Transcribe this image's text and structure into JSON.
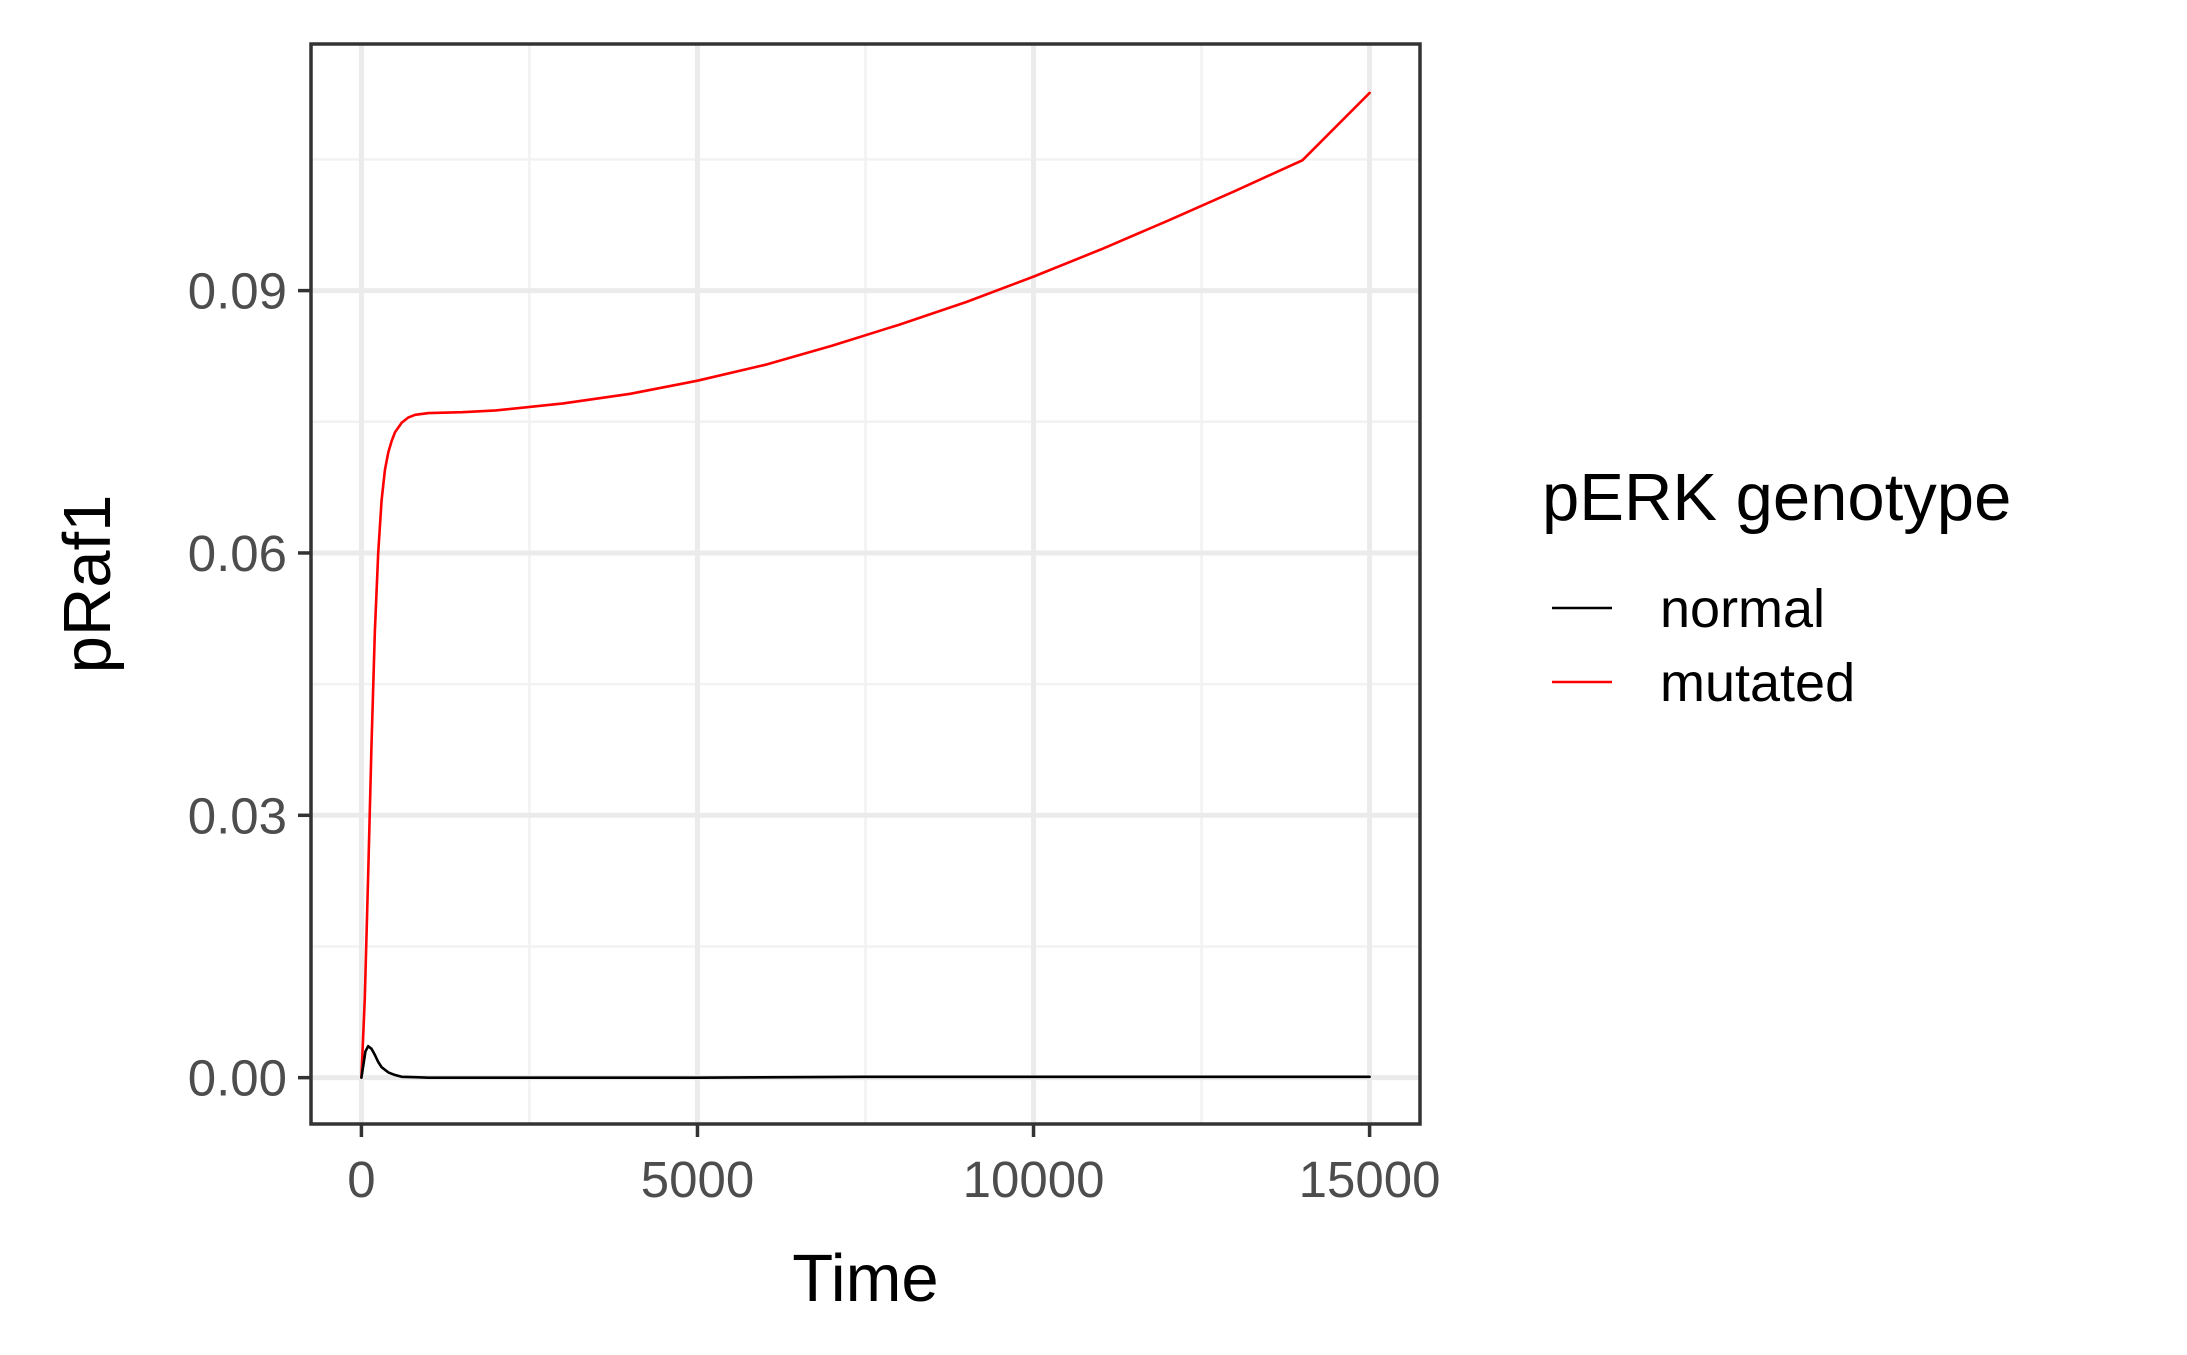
{
  "chart_data": {
    "type": "line",
    "title": "",
    "xlabel": "Time",
    "ylabel": "pRaf1",
    "xlim": [
      -750,
      15750
    ],
    "ylim": [
      -0.0053,
      0.1182
    ],
    "x_ticks": [
      0,
      5000,
      10000,
      15000
    ],
    "x_tick_labels": [
      "0",
      "5000",
      "10000",
      "15000"
    ],
    "y_ticks": [
      0.0,
      0.03,
      0.06,
      0.09
    ],
    "y_tick_labels": [
      "0.00",
      "0.03",
      "0.06",
      "0.09"
    ],
    "x_minor_ticks": [
      2500,
      7500,
      12500
    ],
    "y_minor_ticks": [
      0.015,
      0.045,
      0.075,
      0.105
    ],
    "grid": true,
    "legend": {
      "title": "pERK genotype",
      "position": "right"
    },
    "series": [
      {
        "name": "normal",
        "color": "#000000",
        "x": [
          0,
          30,
          60,
          100,
          150,
          200,
          250,
          300,
          400,
          500,
          600,
          800,
          1000,
          2000,
          5000,
          7500,
          10000,
          15000
        ],
        "y": [
          0.0,
          0.0015,
          0.003,
          0.0036,
          0.0033,
          0.0026,
          0.0018,
          0.0012,
          0.0006,
          0.0003,
          0.0001,
          5e-05,
          0.0,
          0.0,
          0.0,
          0.0001,
          0.0001,
          0.0001
        ]
      },
      {
        "name": "mutated",
        "color": "#ff0000",
        "x": [
          0,
          50,
          100,
          150,
          200,
          250,
          300,
          350,
          400,
          450,
          500,
          600,
          700,
          800,
          1000,
          1500,
          2000,
          3000,
          4000,
          5000,
          6000,
          7000,
          8000,
          9000,
          10000,
          11000,
          12000,
          13000,
          14000,
          15000
        ],
        "y": [
          0.0,
          0.009,
          0.023,
          0.038,
          0.051,
          0.06,
          0.066,
          0.0695,
          0.0715,
          0.0728,
          0.0738,
          0.0749,
          0.0755,
          0.0758,
          0.076,
          0.0761,
          0.0763,
          0.0771,
          0.0782,
          0.0797,
          0.0815,
          0.0837,
          0.0861,
          0.0887,
          0.0916,
          0.0947,
          0.098,
          0.1014,
          0.1049,
          0.1126
        ]
      }
    ]
  }
}
